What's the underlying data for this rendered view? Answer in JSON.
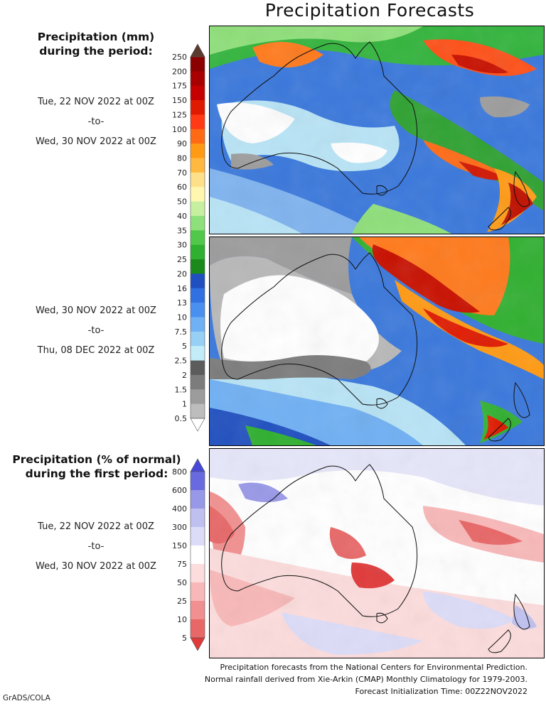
{
  "title": "Precipitation Forecasts",
  "legend_mm": {
    "heading_line1": "Precipitation (mm)",
    "heading_line2": "during the period:",
    "ticks": [
      "250",
      "200",
      "175",
      "150",
      "125",
      "100",
      "90",
      "80",
      "70",
      "60",
      "50",
      "40",
      "35",
      "30",
      "25",
      "20",
      "16",
      "13",
      "10",
      "7.5",
      "5",
      "2.5",
      "2",
      "1.5",
      "1",
      "0.5"
    ],
    "colors": [
      "#5a3a2e",
      "#8b0000",
      "#a80000",
      "#c40000",
      "#e01a00",
      "#ff3a14",
      "#ff6a14",
      "#ff9a14",
      "#ffb840",
      "#ffe08a",
      "#fff7b0",
      "#c6f0a0",
      "#8ee07a",
      "#52c84a",
      "#30b030",
      "#1a8a1a",
      "#2050c0",
      "#3070e0",
      "#4a90f0",
      "#70b0f4",
      "#98cff4",
      "#c2ecf8",
      "#5c5c5c",
      "#7c7c7c",
      "#9c9c9c",
      "#bdbdbd",
      "#ffffff"
    ]
  },
  "period1": {
    "start": "Tue, 22 NOV 2022 at 00Z",
    "sep": "-to-",
    "end": "Wed, 30 NOV 2022 at 00Z"
  },
  "period2": {
    "start": "Wed, 30 NOV 2022 at 00Z",
    "sep": "-to-",
    "end": "Thu, 08 DEC 2022 at 00Z"
  },
  "legend_pct": {
    "heading_line1": "Precipitation (% of normal)",
    "heading_line2": "during the first period:",
    "ticks": [
      "800",
      "600",
      "400",
      "300",
      "150",
      "75",
      "50",
      "25",
      "10",
      "5"
    ],
    "colors": [
      "#4848d8",
      "#6a6ae0",
      "#9898e8",
      "#c0c0f0",
      "#dcdcf8",
      "#ffffff",
      "#fcdcdc",
      "#f8b8b8",
      "#f09090",
      "#e86868",
      "#e03a3a"
    ]
  },
  "period3": {
    "start": "Tue, 22 NOV 2022 at 00Z",
    "sep": "-to-",
    "end": "Wed, 30 NOV 2022 at 00Z"
  },
  "footer": {
    "line1": "Precipitation forecasts from the National Centers for Environmental Prediction.",
    "line2": "Normal rainfall derived from Xie-Arkin (CMAP) Monthly Climatology for 1979-2003.",
    "line3": "Forecast Initialization Time: 00Z22NOV2022"
  },
  "credit": "GrADS/COLA"
}
